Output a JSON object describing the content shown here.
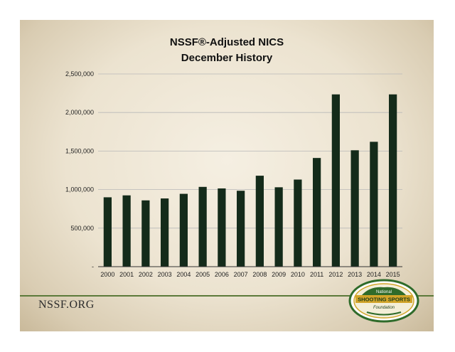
{
  "chart_data": {
    "type": "bar",
    "title": [
      "NSSF®-Adjusted NICS",
      "December History"
    ],
    "categories": [
      "2000",
      "2001",
      "2002",
      "2003",
      "2004",
      "2005",
      "2006",
      "2007",
      "2008",
      "2009",
      "2010",
      "2011",
      "2012",
      "2013",
      "2014",
      "2015"
    ],
    "values": [
      900000,
      925000,
      860000,
      885000,
      945000,
      1035000,
      1015000,
      985000,
      1180000,
      1030000,
      1130000,
      1410000,
      2235000,
      1510000,
      1620000,
      2235000
    ],
    "ylim": [
      0,
      2500000
    ],
    "yticks": [
      0,
      500000,
      1000000,
      1500000,
      2000000,
      2500000
    ],
    "ytick_labels": [
      "-",
      "500,000",
      "1,000,000",
      "1,500,000",
      "2,000,000",
      "2,500,000"
    ],
    "xlabel": "",
    "ylabel": "",
    "grid": true,
    "colors": {
      "bar": "#142b1a",
      "grid": "#b8b8b8",
      "axis": "#333333"
    }
  },
  "footer": {
    "site": "NSSF.ORG"
  },
  "logo": {
    "line1": "National",
    "line2": "SHOOTING SPORTS",
    "line3": "Foundation",
    "colors": {
      "green": "#2f6b2a",
      "gold": "#d2a52a",
      "dark": "#1d3d18"
    }
  },
  "theme": {
    "divider": "#5c7a3a"
  }
}
